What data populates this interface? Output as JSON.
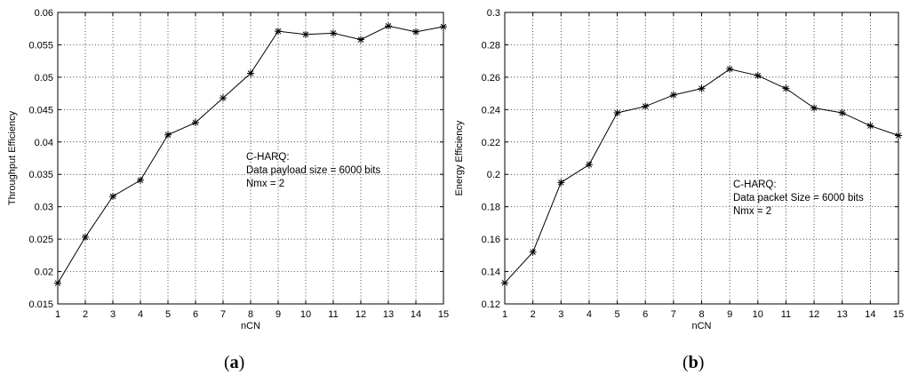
{
  "chart_data": [
    {
      "type": "line",
      "caption": "a",
      "xlabel": "nCN",
      "ylabel": "Throughput Efficiency",
      "xlim": [
        1,
        15
      ],
      "ylim": [
        0.015,
        0.06
      ],
      "xticks": [
        "1",
        "2",
        "3",
        "4",
        "5",
        "6",
        "7",
        "8",
        "9",
        "10",
        "11",
        "12",
        "13",
        "14",
        "15"
      ],
      "yticks": [
        "0.015",
        "0.02",
        "0.025",
        "0.03",
        "0.035",
        "0.04",
        "0.045",
        "0.05",
        "0.055",
        "0.06"
      ],
      "grid": true,
      "marker": "asterisk",
      "color": "#000000",
      "series": [
        {
          "x": [
            1,
            2,
            3,
            4,
            5,
            6,
            7,
            8,
            9,
            10,
            11,
            12,
            13,
            14,
            15
          ],
          "values": [
            0.0182,
            0.0253,
            0.0316,
            0.0341,
            0.0411,
            0.043,
            0.0468,
            0.0506,
            0.0571,
            0.0566,
            0.0568,
            0.0558,
            0.0579,
            0.057,
            0.0578
          ]
        }
      ],
      "annotation": [
        "C-HARQ:",
        "Data payload size = 6000 bits",
        "Nmx = 2"
      ]
    },
    {
      "type": "line",
      "caption": "b",
      "xlabel": "nCN",
      "ylabel": "Energy Efficiency",
      "xlim": [
        1,
        15
      ],
      "ylim": [
        0.12,
        0.3
      ],
      "xticks": [
        "1",
        "2",
        "3",
        "4",
        "5",
        "6",
        "7",
        "8",
        "9",
        "10",
        "11",
        "12",
        "13",
        "14",
        "15"
      ],
      "yticks": [
        "0.12",
        "0.14",
        "0.16",
        "0.18",
        "0.2",
        "0.22",
        "0.24",
        "0.26",
        "0.28",
        "0.3"
      ],
      "grid": true,
      "marker": "asterisk",
      "color": "#000000",
      "series": [
        {
          "x": [
            1,
            2,
            3,
            4,
            5,
            6,
            7,
            8,
            9,
            10,
            11,
            12,
            13,
            14,
            15
          ],
          "values": [
            0.133,
            0.152,
            0.195,
            0.206,
            0.238,
            0.242,
            0.249,
            0.253,
            0.265,
            0.261,
            0.253,
            0.241,
            0.238,
            0.23,
            0.224
          ]
        }
      ],
      "annotation": [
        "C-HARQ:",
        "Data packet Size = 6000 bits",
        "Nmx = 2"
      ]
    }
  ]
}
